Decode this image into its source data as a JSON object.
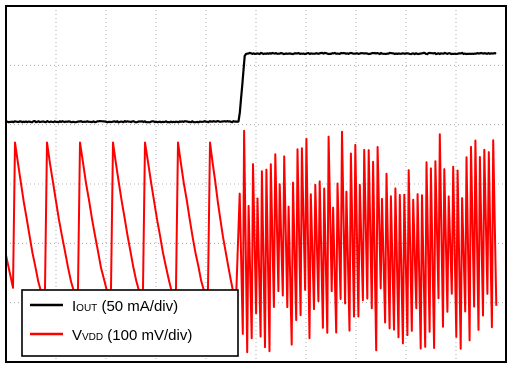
{
  "chart_data": {
    "type": "line",
    "title": "",
    "xlabel": "",
    "ylabel": "",
    "grid": true,
    "grid_divisions": {
      "x": 10,
      "y": 6
    },
    "legend_position": "bottom-left",
    "time_range_div": [
      0,
      10
    ],
    "series": [
      {
        "name_main": "I",
        "name_sub": "OUT",
        "name_rest": " (50 mA/div)",
        "color": "#000000",
        "kind": "step",
        "step_at_div": 4.66,
        "low_div": 4.05,
        "high_div": 5.2
      },
      {
        "name_main": "V",
        "name_sub": "VDD",
        "name_rest": " (100 mV/div)",
        "color": "#ff0000",
        "kind": "ripple",
        "phase1": {
          "t_start_div": 0,
          "t_end_div": 4.66,
          "peaks_div": [
            0.18,
            0.82,
            1.48,
            2.14,
            2.78,
            3.44,
            4.08
          ],
          "peak_level_div": 3.7,
          "trough_level_div": 1.05
        },
        "phase2": {
          "t_start_div": 4.66,
          "t_end_div": 9.82,
          "cycles": 58,
          "high_range_div": [
            2.6,
            3.9
          ],
          "low_range_div": [
            0.15,
            1.25
          ]
        }
      }
    ]
  },
  "colors": {
    "frame": "#000000",
    "grid": "#9a9a9a",
    "background": "#ffffff"
  }
}
